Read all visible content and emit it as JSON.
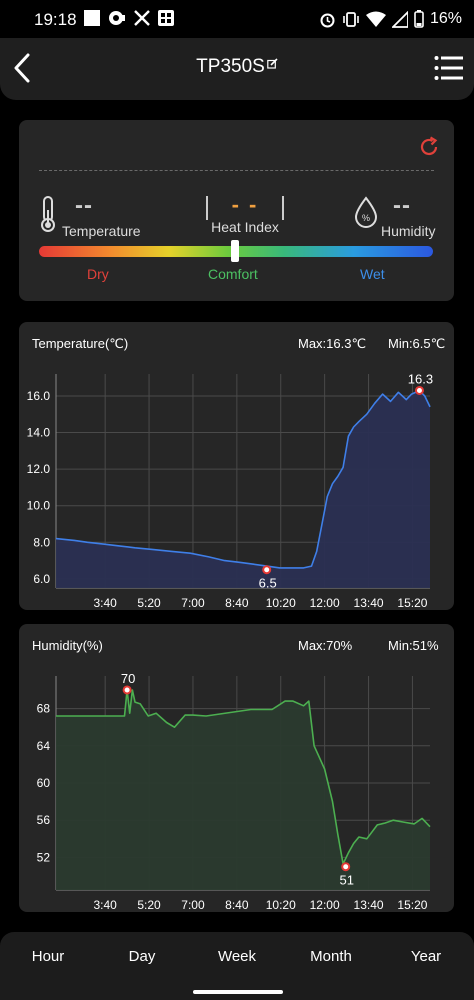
{
  "status_bar": {
    "time": "19:18",
    "battery": "16%",
    "icons": [
      "square-notification-icon",
      "chat-bubble-icon",
      "x-logo-icon",
      "app-grid-icon",
      "alarm-icon",
      "vibrate-icon",
      "wifi-icon",
      "signal-icon",
      "battery-icon"
    ]
  },
  "header": {
    "title": "TP350S",
    "icons": [
      "back-arrow-icon",
      "edit-icon",
      "menu-icon"
    ]
  },
  "status": {
    "temperature_value": "--",
    "temperature_label": "Temperature",
    "heat_index_value": "- -",
    "heat_index_label": "Heat Index",
    "humidity_value": "--",
    "humidity_label": "Humidity",
    "comfort_position": 0.5,
    "scale_labels": {
      "dry": "Dry",
      "comfort": "Comfort",
      "wet": "Wet"
    },
    "colors": {
      "heat_index": "#f0a040",
      "dry": "#e0413a",
      "comfort": "#4cc062",
      "wet": "#3d8ee8",
      "refresh": "#e0413a"
    }
  },
  "chart_data": [
    {
      "type": "area",
      "title": "Temperature(℃)",
      "max_label": "Max:16.3℃",
      "min_label": "Min:6.5℃",
      "x_ticks": [
        "3:40",
        "5:20",
        "7:00",
        "8:40",
        "10:20",
        "12:00",
        "13:40",
        "15:20"
      ],
      "x_tick_values": [
        3.667,
        5.333,
        7.0,
        8.667,
        10.333,
        12.0,
        13.667,
        15.333
      ],
      "y_ticks": [
        "16.0",
        "14.0",
        "12.0",
        "10.0",
        "8.0",
        "6.0"
      ],
      "y_tick_values": [
        16,
        14,
        12,
        10,
        8,
        6
      ],
      "xlim": [
        1.8,
        16.0
      ],
      "ylim": [
        5.5,
        17.2
      ],
      "grid": true,
      "line_color": "#3f7fe8",
      "fill_color": "#2a2f52",
      "x": [
        1.8,
        2.5,
        3.0,
        3.6,
        4.2,
        4.8,
        5.5,
        6.2,
        6.9,
        7.6,
        8.2,
        8.8,
        9.3,
        9.8,
        10.3,
        10.8,
        11.2,
        11.5,
        11.7,
        11.9,
        12.1,
        12.3,
        12.5,
        12.7,
        12.9,
        13.1,
        13.3,
        13.6,
        13.9,
        14.2,
        14.5,
        14.8,
        15.1,
        15.3,
        15.6,
        15.8,
        16.0
      ],
      "y": [
        8.2,
        8.1,
        8.0,
        7.9,
        7.8,
        7.7,
        7.6,
        7.5,
        7.4,
        7.2,
        7.0,
        6.9,
        6.8,
        6.7,
        6.6,
        6.6,
        6.6,
        6.7,
        7.5,
        9.0,
        10.5,
        11.2,
        11.6,
        12.1,
        13.8,
        14.3,
        14.6,
        15.0,
        15.6,
        16.1,
        15.7,
        16.2,
        15.8,
        16.1,
        16.3,
        16.0,
        15.4
      ],
      "markers": [
        {
          "x": 9.8,
          "y": 6.5,
          "label": "6.5"
        },
        {
          "x": 15.6,
          "y": 16.3,
          "label": "16.3"
        }
      ]
    },
    {
      "type": "area",
      "title": "Humidity(%)",
      "max_label": "Max:70%",
      "min_label": "Min:51%",
      "x_ticks": [
        "3:40",
        "5:20",
        "7:00",
        "8:40",
        "10:20",
        "12:00",
        "13:40",
        "15:20"
      ],
      "x_tick_values": [
        3.667,
        5.333,
        7.0,
        8.667,
        10.333,
        12.0,
        13.667,
        15.333
      ],
      "y_ticks": [
        "68",
        "64",
        "60",
        "56",
        "52"
      ],
      "y_tick_values": [
        68,
        64,
        60,
        56,
        52
      ],
      "xlim": [
        1.8,
        16.0
      ],
      "ylim": [
        48.5,
        71.5
      ],
      "grid": true,
      "line_color": "#4caf50",
      "fill_color": "#2a3a2e",
      "x": [
        1.8,
        4.4,
        4.5,
        4.6,
        4.7,
        4.8,
        5.0,
        5.3,
        5.6,
        6.0,
        6.3,
        6.7,
        7.0,
        7.5,
        9.2,
        10.0,
        10.5,
        10.8,
        11.2,
        11.4,
        11.6,
        12.0,
        12.3,
        12.5,
        12.7,
        12.9,
        13.1,
        13.3,
        13.6,
        14.0,
        14.3,
        14.6,
        15.0,
        15.4,
        15.7,
        16.0
      ],
      "y": [
        67.2,
        67.2,
        70.0,
        67.5,
        70.0,
        68.7,
        68.5,
        67.2,
        67.5,
        66.5,
        66.0,
        67.3,
        67.3,
        67.2,
        67.9,
        67.9,
        68.8,
        68.8,
        68.3,
        68.8,
        64.0,
        61.5,
        58.0,
        54.5,
        51.3,
        52.5,
        53.5,
        54.2,
        54.0,
        55.5,
        55.7,
        56.0,
        55.8,
        55.6,
        56.2,
        55.3
      ],
      "markers": [
        {
          "x": 4.5,
          "y": 70.0,
          "label": "70"
        },
        {
          "x": 12.8,
          "y": 51.0,
          "label": "51"
        }
      ]
    }
  ],
  "tabs": [
    "Hour",
    "Day",
    "Week",
    "Month",
    "Year"
  ]
}
